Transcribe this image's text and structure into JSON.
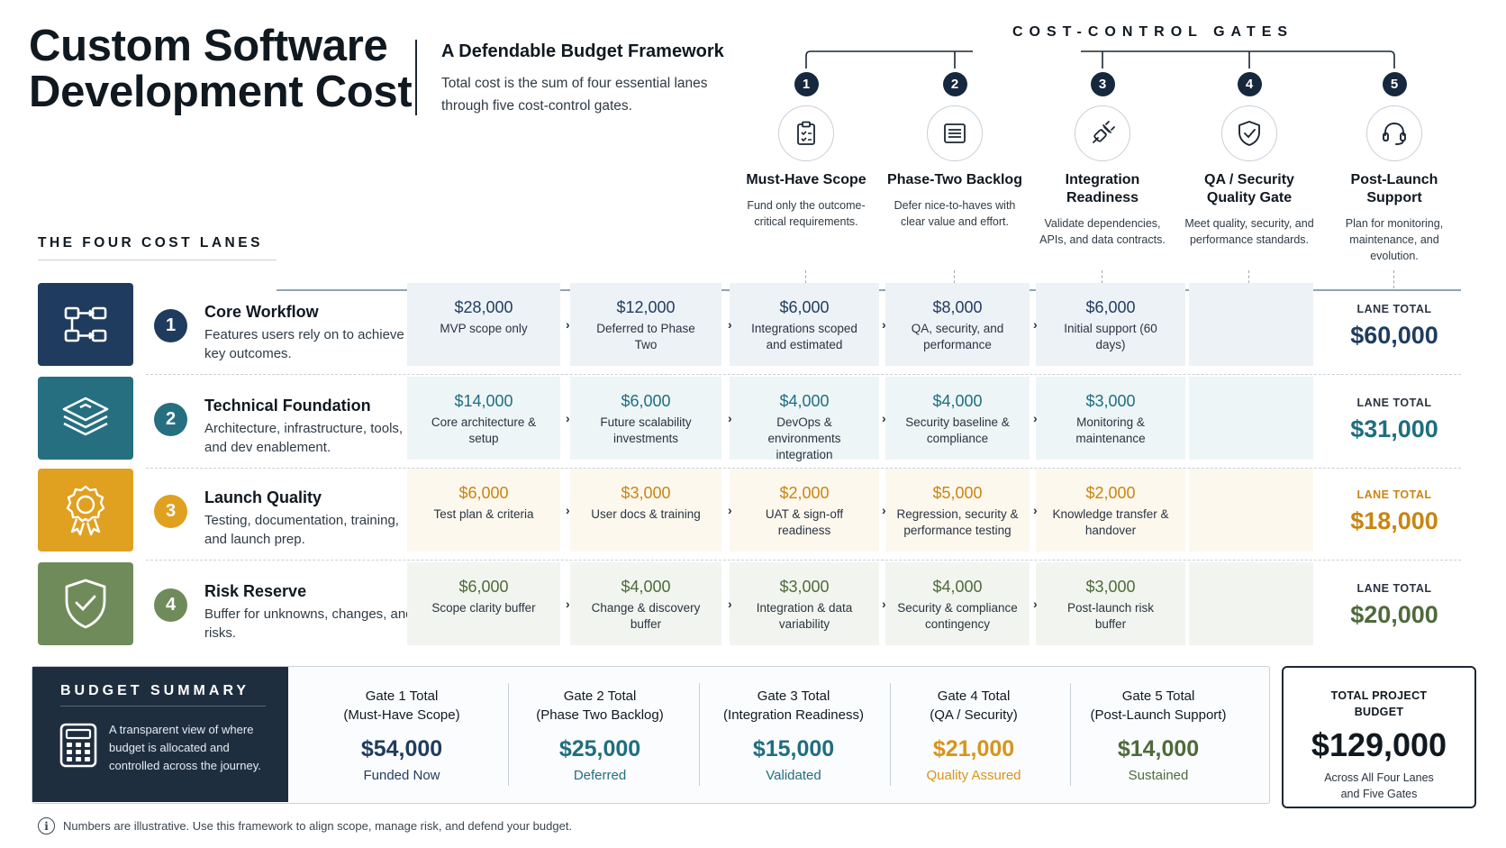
{
  "header": {
    "title_line1": "Custom Software",
    "title_line2": "Development Cost",
    "subtitle": "A Defendable Budget Framework",
    "description": "Total cost is the sum of four essential lanes through five cost-control gates."
  },
  "gates": {
    "heading": "COST-CONTROL GATES",
    "items": [
      {
        "num": "1",
        "icon": "clipboard-check-icon",
        "title": "Must-Have Scope",
        "desc": "Fund only the outcome-critical requirements."
      },
      {
        "num": "2",
        "icon": "list-icon",
        "title": "Phase-Two Backlog",
        "desc": "Defer nice-to-haves with clear value and effort."
      },
      {
        "num": "3",
        "icon": "plug-icon",
        "title": "Integration Readiness",
        "desc": "Validate dependencies, APIs, and data contracts."
      },
      {
        "num": "4",
        "icon": "shield-check-icon",
        "title": "QA / Security Quality Gate",
        "desc": "Meet quality, security, and performance standards."
      },
      {
        "num": "5",
        "icon": "headset-icon",
        "title": "Post-Launch Support",
        "desc": "Plan for monitoring, maintenance, and evolution."
      }
    ]
  },
  "lanes_heading": "THE FOUR COST LANES",
  "lanes": [
    {
      "num": "1",
      "name": "Core Workflow",
      "desc": "Features users rely on to achieve key outcomes.",
      "icon": "workflow-icon",
      "color": "#1f3c5e",
      "amount_color": "#1f3c5e",
      "cell_bg": "#edf2f7",
      "cells": [
        {
          "amount": "$28,000",
          "label": "MVP scope only"
        },
        {
          "amount": "$12,000",
          "label": "Deferred to Phase Two"
        },
        {
          "amount": "$6,000",
          "label": "Integrations scoped and estimated"
        },
        {
          "amount": "$8,000",
          "label": "QA, security, and performance"
        },
        {
          "amount": "$6,000",
          "label": "Initial support (60 days)"
        }
      ],
      "total_label": "LANE TOTAL",
      "total": "$60,000"
    },
    {
      "num": "2",
      "name": "Technical Foundation",
      "desc": "Architecture, infrastructure, tools, and dev enablement.",
      "icon": "layers-icon",
      "color": "#266f80",
      "amount_color": "#1f6e80",
      "cell_bg": "#eef5f7",
      "cells": [
        {
          "amount": "$14,000",
          "label": "Core architecture & setup"
        },
        {
          "amount": "$6,000",
          "label": "Future scalability investments"
        },
        {
          "amount": "$4,000",
          "label": "DevOps & environments integration"
        },
        {
          "amount": "$4,000",
          "label": "Security baseline & compliance"
        },
        {
          "amount": "$3,000",
          "label": "Monitoring & maintenance"
        }
      ],
      "total_label": "LANE TOTAL",
      "total": "$31,000"
    },
    {
      "num": "3",
      "name": "Launch Quality",
      "desc": "Testing, documentation, training, and launch prep.",
      "icon": "award-icon",
      "color": "#e0a020",
      "amount_color": "#c98510",
      "cell_bg": "#fdf8ee",
      "cells": [
        {
          "amount": "$6,000",
          "label": "Test plan & criteria"
        },
        {
          "amount": "$3,000",
          "label": "User docs & training"
        },
        {
          "amount": "$2,000",
          "label": "UAT & sign-off readiness"
        },
        {
          "amount": "$5,000",
          "label": "Regression, security & performance testing"
        },
        {
          "amount": "$2,000",
          "label": "Knowledge transfer & handover"
        }
      ],
      "total_label": "LANE TOTAL",
      "total": "$18,000"
    },
    {
      "num": "4",
      "name": "Risk Reserve",
      "desc": "Buffer for unknowns, changes, and risks.",
      "icon": "shield-check-icon",
      "color": "#6f8b5a",
      "amount_color": "#4e6a3c",
      "cell_bg": "#f2f5ef",
      "cells": [
        {
          "amount": "$6,000",
          "label": "Scope clarity buffer"
        },
        {
          "amount": "$4,000",
          "label": "Change & discovery buffer"
        },
        {
          "amount": "$3,000",
          "label": "Integration & data variability"
        },
        {
          "amount": "$4,000",
          "label": "Security & compliance contingency"
        },
        {
          "amount": "$3,000",
          "label": "Post-launch risk buffer"
        }
      ],
      "total_label": "LANE TOTAL",
      "total": "$20,000"
    }
  ],
  "summary": {
    "title": "BUDGET SUMMARY",
    "desc": "A transparent view of where budget is allocated and controlled across the journey.",
    "gates": [
      {
        "line1": "Gate 1 Total",
        "line2": "(Must-Have Scope)",
        "value": "$54,000",
        "status": "Funded Now",
        "color": "#1f3c5e"
      },
      {
        "line1": "Gate 2 Total",
        "line2": "(Phase Two Backlog)",
        "value": "$25,000",
        "status": "Deferred",
        "color": "#1f6e80"
      },
      {
        "line1": "Gate 3 Total",
        "line2": "(Integration Readiness)",
        "value": "$15,000",
        "status": "Validated",
        "color": "#1f6e80"
      },
      {
        "line1": "Gate 4 Total",
        "line2": "(QA / Security)",
        "value": "$21,000",
        "status": "Quality Assured",
        "color": "#d8941a"
      },
      {
        "line1": "Gate 5 Total",
        "line2": "(Post-Launch Support)",
        "value": "$14,000",
        "status": "Sustained",
        "color": "#4e6a3c"
      }
    ]
  },
  "project_total": {
    "label_line1": "TOTAL PROJECT",
    "label_line2": "BUDGET",
    "value": "$129,000",
    "sub_line1": "Across All Four Lanes",
    "sub_line2": "and Five Gates"
  },
  "footnote": "Numbers are illustrative. Use this framework to align scope, manage risk, and defend your budget."
}
